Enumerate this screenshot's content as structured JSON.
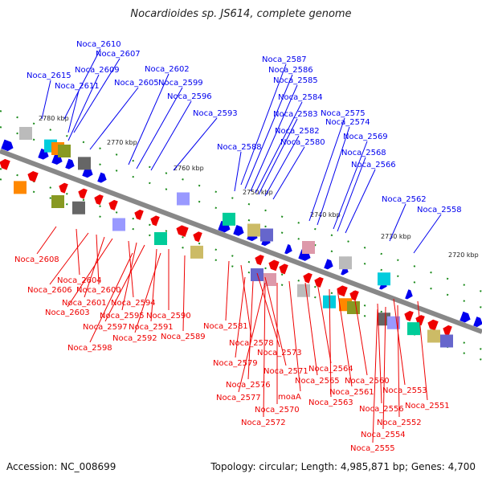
{
  "title": "Nocardioides sp. JS614, complete genome",
  "accession": "Accession: NC_008699",
  "topology": "Topology: circular; Length: 4,985,871 bp; Genes: 4,700",
  "colors": {
    "forward": "#0000ee",
    "reverse": "#ee0000",
    "backbone": "#888888",
    "tick": "#1a8a1a"
  },
  "scale_labels": [
    "2780 kbp",
    "2770 kbp",
    "2760 kbp",
    "2750 kbp",
    "2740 kbp",
    "2730 kbp",
    "2720 kbp"
  ],
  "forward_genes": [
    "Noca_2615",
    "Noca_2610",
    "Noca_2609",
    "Noca_2611",
    "Noca_2607",
    "Noca_2605",
    "Noca_2602",
    "Noca_2599",
    "Noca_2596",
    "Noca_2593",
    "Noca_2587",
    "Noca_2586",
    "Noca_2585",
    "Noca_2584",
    "Noca_2583",
    "Noca_2582",
    "Noca_2588",
    "Noca_2580",
    "Noca_2575",
    "Noca_2574",
    "Noca_2569",
    "Noca_2568",
    "Noca_2566",
    "Noca_2562",
    "Noca_2558"
  ],
  "reverse_genes": [
    "Noca_2608",
    "Noca_2604",
    "Noca_2606",
    "Noca_2600",
    "Noca_2601",
    "Noca_2603",
    "Noca_2594",
    "Noca_2595",
    "Noca_2597",
    "Noca_2591",
    "Noca_2590",
    "Noca_2592",
    "Noca_2589",
    "Noca_2598",
    "Noca_2581",
    "Noca_2578",
    "Noca_2573",
    "Noca_2579",
    "Noca_2571",
    "Noca_2576",
    "Noca_2565",
    "Noca_2564",
    "moaA",
    "Noca_2577",
    "Noca_2570",
    "Noca_2572",
    "Noca_2561",
    "Noca_2563",
    "Noca_2560",
    "Noca_2553",
    "Noca_2556",
    "Noca_2551",
    "Noca_2552",
    "Noca_2554",
    "Noca_2555"
  ]
}
